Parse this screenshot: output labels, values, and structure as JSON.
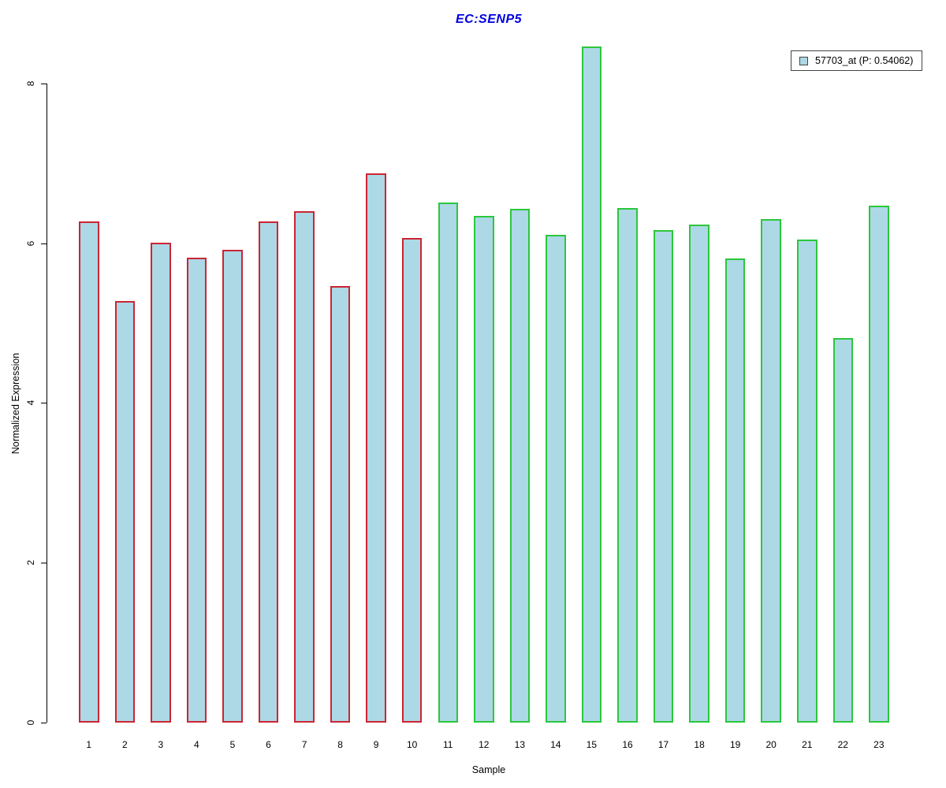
{
  "title": {
    "text": "EC:SENP5",
    "color": "#0000E0"
  },
  "axes": {
    "ylabel": "Normalized Expression",
    "xlabel": "Sample"
  },
  "legend": {
    "label": "57703_at (P: 0.54062)",
    "swatch_fill": "#ADD8E6",
    "swatch_border": "#444444",
    "position": "top-right"
  },
  "colors": {
    "bar_fill": "#ADD8E6",
    "group1_border": "#CC2533",
    "group2_border": "#2BC73C",
    "axis": "#000000",
    "background": "#FFFFFF"
  },
  "chart_data": {
    "type": "bar",
    "title": "EC:SENP5",
    "xlabel": "Sample",
    "ylabel": "Normalized Expression",
    "ylim": [
      0,
      8.6
    ],
    "yticks": [
      0,
      2,
      4,
      6,
      8
    ],
    "grid": false,
    "legend_position": "top-right",
    "categories": [
      "1",
      "2",
      "3",
      "4",
      "5",
      "6",
      "7",
      "8",
      "9",
      "10",
      "11",
      "12",
      "13",
      "14",
      "15",
      "16",
      "17",
      "18",
      "19",
      "20",
      "21",
      "22",
      "23"
    ],
    "series": [
      {
        "name": "57703_at (P: 0.54062)",
        "values": [
          6.27,
          5.28,
          6.01,
          5.82,
          5.92,
          6.27,
          6.4,
          5.46,
          6.87,
          6.07,
          6.51,
          6.34,
          6.43,
          6.1,
          8.46,
          6.44,
          6.16,
          6.23,
          5.81,
          6.3,
          6.05,
          4.81,
          6.47
        ],
        "fill": "#ADD8E6"
      }
    ],
    "bar_border_groups": [
      {
        "from_sample": 1,
        "to_sample": 10,
        "border_color": "#CC2533"
      },
      {
        "from_sample": 11,
        "to_sample": 23,
        "border_color": "#2BC73C"
      }
    ]
  }
}
